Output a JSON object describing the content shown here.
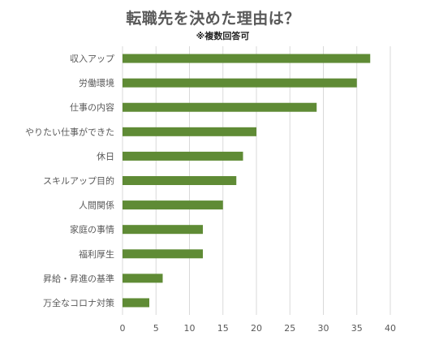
{
  "chart_data": {
    "type": "bar",
    "orientation": "horizontal",
    "title": "転職先を決めた理由は？",
    "subtitle": "※複数回答可",
    "categories": [
      "収入アップ",
      "労働環境",
      "仕事の内容",
      "やりたい仕事ができた",
      "休日",
      "スキルアップ目的",
      "人間関係",
      "家庭の事情",
      "福利厚生",
      "昇給・昇進の基準",
      "万全なコロナ対策"
    ],
    "values": [
      37,
      35,
      29,
      20,
      18,
      17,
      15,
      12,
      12,
      6,
      4
    ],
    "xlim": [
      0,
      40
    ],
    "xticks": [
      0,
      5,
      10,
      15,
      20,
      25,
      30,
      35,
      40
    ],
    "bar_color": "#5f8b35",
    "grid": true,
    "legend": "none"
  }
}
